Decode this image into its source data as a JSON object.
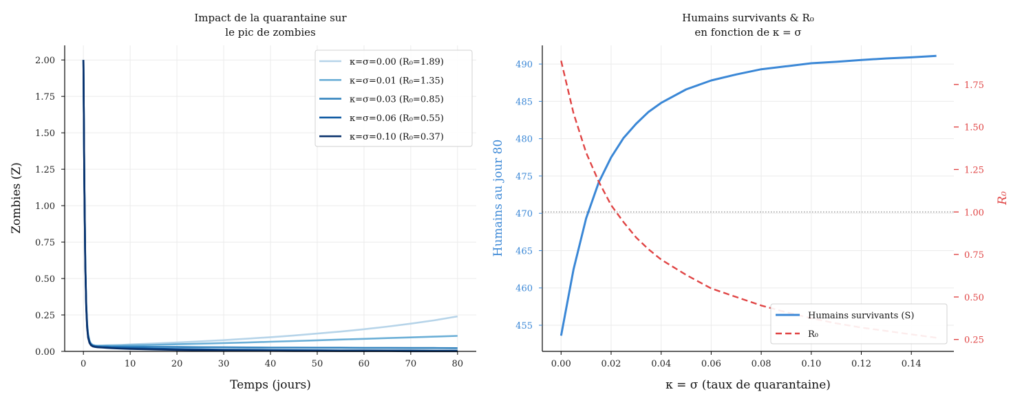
{
  "chart_data": [
    {
      "type": "line",
      "title_lines": [
        "Impact de la quarantaine sur",
        "le pic de zombies"
      ],
      "xlabel": "Temps (jours)",
      "ylabel": "Zombies (Z)",
      "xlim": [
        -4,
        84
      ],
      "ylim": [
        0,
        2.1
      ],
      "xticks": [
        "0",
        "10",
        "20",
        "30",
        "40",
        "50",
        "60",
        "70",
        "80"
      ],
      "yticks": [
        "0.00",
        "0.25",
        "0.50",
        "0.75",
        "1.00",
        "1.25",
        "1.50",
        "1.75",
        "2.00"
      ],
      "grid": true,
      "legend_position": "top-right",
      "x": [
        0,
        0.2,
        0.4,
        0.6,
        0.8,
        1.0,
        1.3,
        1.6,
        2.0,
        2.5,
        3,
        4,
        5,
        6,
        8,
        10,
        15,
        20,
        25,
        30,
        35,
        40,
        45,
        50,
        55,
        60,
        65,
        70,
        75,
        80
      ],
      "series": [
        {
          "name": "κ=σ=0.00",
          "r0": "1.89",
          "label": "κ=σ=0.00  (R₀=1.89)",
          "color": "#b6d4e9",
          "values": [
            2.0,
            1.2,
            0.62,
            0.33,
            0.19,
            0.12,
            0.075,
            0.055,
            0.045,
            0.041,
            0.04,
            0.041,
            0.042,
            0.043,
            0.045,
            0.048,
            0.054,
            0.061,
            0.069,
            0.077,
            0.087,
            0.097,
            0.109,
            0.122,
            0.136,
            0.152,
            0.17,
            0.19,
            0.213,
            0.24
          ]
        },
        {
          "name": "κ=σ=0.01",
          "r0": "1.35",
          "label": "κ=σ=0.01  (R₀=1.35)",
          "color": "#6aaed6",
          "values": [
            2.0,
            1.2,
            0.62,
            0.33,
            0.19,
            0.12,
            0.073,
            0.053,
            0.043,
            0.039,
            0.038,
            0.038,
            0.039,
            0.039,
            0.04,
            0.042,
            0.045,
            0.049,
            0.053,
            0.057,
            0.061,
            0.066,
            0.071,
            0.076,
            0.081,
            0.086,
            0.091,
            0.096,
            0.101,
            0.106
          ]
        },
        {
          "name": "κ=σ=0.03",
          "r0": "0.85",
          "label": "κ=σ=0.03  (R₀=0.85)",
          "color": "#3383be",
          "values": [
            2.0,
            1.2,
            0.61,
            0.32,
            0.18,
            0.11,
            0.068,
            0.05,
            0.041,
            0.037,
            0.035,
            0.034,
            0.034,
            0.033,
            0.033,
            0.032,
            0.031,
            0.03,
            0.029,
            0.028,
            0.027,
            0.026,
            0.026,
            0.025,
            0.025,
            0.024,
            0.024,
            0.023,
            0.023,
            0.022
          ]
        },
        {
          "name": "κ=σ=0.06",
          "r0": "0.55",
          "label": "κ=σ=0.06  (R₀=0.55)",
          "color": "#0e59a2",
          "values": [
            2.0,
            1.19,
            0.6,
            0.31,
            0.17,
            0.1,
            0.063,
            0.046,
            0.037,
            0.033,
            0.031,
            0.029,
            0.028,
            0.026,
            0.024,
            0.022,
            0.019,
            0.016,
            0.014,
            0.012,
            0.011,
            0.01,
            0.009,
            0.008,
            0.007,
            0.007,
            0.006,
            0.006,
            0.005,
            0.005
          ]
        },
        {
          "name": "κ=σ=0.10",
          "r0": "0.37",
          "label": "κ=σ=0.10  (R₀=0.37)",
          "color": "#08306b",
          "values": [
            2.0,
            1.18,
            0.59,
            0.3,
            0.16,
            0.095,
            0.058,
            0.042,
            0.034,
            0.03,
            0.028,
            0.026,
            0.024,
            0.022,
            0.019,
            0.017,
            0.013,
            0.01,
            0.008,
            0.006,
            0.005,
            0.004,
            0.003,
            0.003,
            0.002,
            0.002,
            0.002,
            0.001,
            0.001,
            0.001
          ]
        }
      ]
    },
    {
      "type": "line",
      "title_lines": [
        "Humains survivants & R₀",
        "en fonction de κ = σ"
      ],
      "xlabel": "κ = σ (taux de quarantaine)",
      "ylabel_left": "Humains au jour 80",
      "ylabel_right": "R₀",
      "xlim": [
        -0.0075,
        0.157
      ],
      "ylim_left": [
        451.5,
        492.5
      ],
      "ylim_right": [
        0.18,
        1.98
      ],
      "xticks": [
        "0.00",
        "0.02",
        "0.04",
        "0.06",
        "0.08",
        "0.10",
        "0.12",
        "0.14"
      ],
      "yticks_left": [
        "455",
        "460",
        "465",
        "470",
        "475",
        "480",
        "485",
        "490"
      ],
      "yticks_right": [
        "0.25",
        "0.50",
        "0.75",
        "1.00",
        "1.25",
        "1.50",
        "1.75"
      ],
      "reference_line": {
        "axis": "right",
        "value": 1.0,
        "style": "dotted",
        "color": "#888888"
      },
      "grid": true,
      "legend_position": "bottom-right",
      "left_color": "#3a87d6",
      "right_color": "#e04444",
      "x": [
        0,
        0.005,
        0.01,
        0.015,
        0.02,
        0.025,
        0.03,
        0.035,
        0.04,
        0.05,
        0.06,
        0.07,
        0.08,
        0.09,
        0.1,
        0.11,
        0.12,
        0.13,
        0.14,
        0.15
      ],
      "series": [
        {
          "name": "Humains survivants (S)",
          "axis": "left",
          "style": "solid",
          "color": "#3a87d6",
          "values": [
            453.6,
            462.5,
            469.3,
            474.1,
            477.5,
            480.1,
            482.0,
            483.6,
            484.8,
            486.6,
            487.8,
            488.6,
            489.3,
            489.7,
            490.1,
            490.3,
            490.55,
            490.75,
            490.9,
            491.1
          ]
        },
        {
          "name": "R₀",
          "axis": "right",
          "style": "dashed",
          "color": "#e04444",
          "values": [
            1.89,
            1.58,
            1.35,
            1.18,
            1.04,
            0.94,
            0.85,
            0.78,
            0.72,
            0.63,
            0.55,
            0.5,
            0.45,
            0.41,
            0.375,
            0.345,
            0.32,
            0.3,
            0.28,
            0.26
          ]
        }
      ]
    }
  ]
}
